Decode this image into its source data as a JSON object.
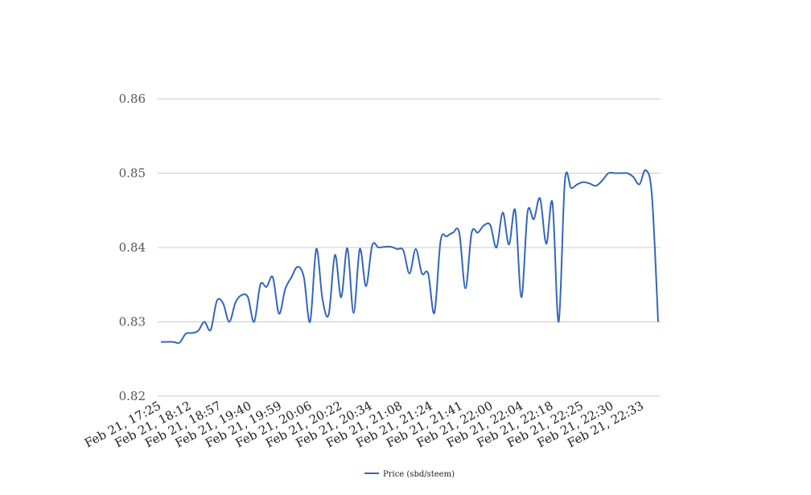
{
  "chart_data": {
    "type": "line",
    "title": "",
    "xlabel": "",
    "ylabel": "",
    "ylim": [
      0.82,
      0.86
    ],
    "yticks": [
      "0.82",
      "0.83",
      "0.84",
      "0.85",
      "0.86"
    ],
    "grid": true,
    "legend": "bottom",
    "x_tick_labels": [
      "Feb 21, 17:25",
      "Feb 21, 18:12",
      "Feb 21, 18:57",
      "Feb 21, 19:40",
      "Feb 21, 19:59",
      "Feb 21, 20:06",
      "Feb 21, 20:22",
      "Feb 21, 20:34",
      "Feb 21, 21:08",
      "Feb 21, 21:24",
      "Feb 21, 21:41",
      "Feb 21, 22:00",
      "Feb 21, 22:04",
      "Feb 21, 22:18",
      "Feb 21, 22:25",
      "Feb 21, 22:30",
      "Feb 21, 22:33"
    ],
    "series": [
      {
        "name": "Price (sbd/steem)",
        "color": "#3366bb",
        "values": [
          0.8273,
          0.8273,
          0.8273,
          0.8272,
          0.8284,
          0.8285,
          0.8288,
          0.83,
          0.8289,
          0.8328,
          0.8325,
          0.83,
          0.8326,
          0.8336,
          0.8333,
          0.83,
          0.835,
          0.8347,
          0.836,
          0.8311,
          0.8344,
          0.836,
          0.8374,
          0.836,
          0.83,
          0.8398,
          0.833,
          0.831,
          0.839,
          0.8333,
          0.8399,
          0.8312,
          0.8398,
          0.8348,
          0.8403,
          0.84,
          0.8401,
          0.8401,
          0.8398,
          0.8396,
          0.8365,
          0.8398,
          0.8365,
          0.8365,
          0.8312,
          0.8409,
          0.8415,
          0.842,
          0.842,
          0.8345,
          0.842,
          0.842,
          0.843,
          0.843,
          0.84,
          0.8447,
          0.8404,
          0.845,
          0.8333,
          0.8448,
          0.8438,
          0.8466,
          0.8405,
          0.846,
          0.83,
          0.849,
          0.848,
          0.8485,
          0.8488,
          0.8486,
          0.8483,
          0.849,
          0.85,
          0.85,
          0.85,
          0.85,
          0.8495,
          0.8485,
          0.8504,
          0.847,
          0.83
        ]
      }
    ]
  }
}
